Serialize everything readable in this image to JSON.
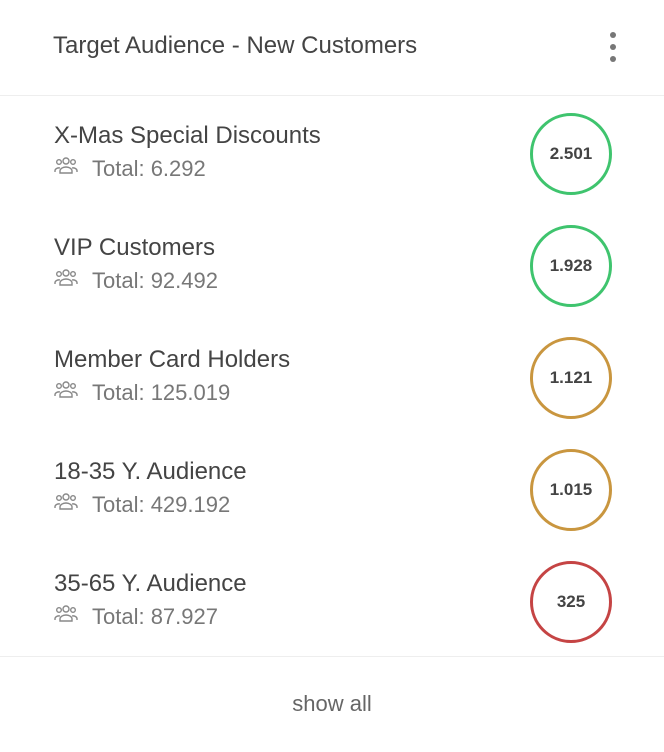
{
  "header": {
    "title": "Target Audience - New Customers",
    "menu_icon": "more-vertical-icon"
  },
  "colors": {
    "green": "#3fc46e",
    "gold": "#c9963f",
    "red": "#c54444"
  },
  "items": [
    {
      "name": "X-Mas Special Discounts",
      "total": "Total: 6.292",
      "value": "2.501",
      "status": "green"
    },
    {
      "name": "VIP Customers",
      "total": "Total: 92.492",
      "value": "1.928",
      "status": "green"
    },
    {
      "name": "Member Card Holders",
      "total": "Total: 125.019",
      "value": "1.121",
      "status": "gold"
    },
    {
      "name": "18-35 Y. Audience",
      "total": "Total: 429.192",
      "value": "1.015",
      "status": "gold"
    },
    {
      "name": "35-65 Y. Audience",
      "total": "Total: 87.927",
      "value": "325",
      "status": "red"
    }
  ],
  "footer": {
    "show_all": "show all"
  }
}
